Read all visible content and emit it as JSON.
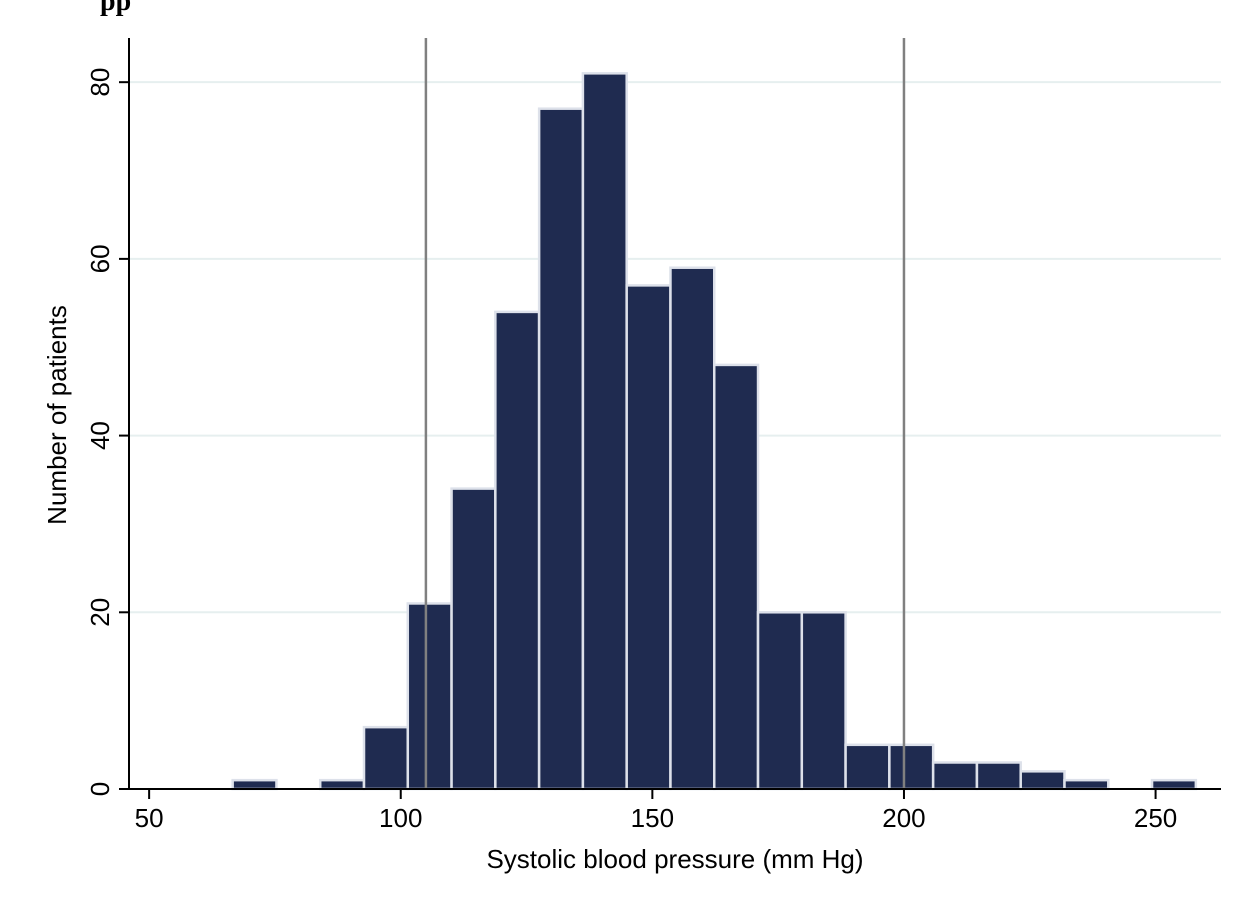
{
  "header_fragment": "pp",
  "colors": {
    "bar_fill": "#1f2b50",
    "bar_edge": "#dde1ea",
    "gridline": "#e6efef",
    "refline": "#808080",
    "axis": "#000000"
  },
  "chart_data": {
    "type": "bar",
    "title": "",
    "xlabel": "Systolic blood pressure (mm Hg)",
    "ylabel": "Number of patients",
    "xlim": [
      46,
      263
    ],
    "ylim": [
      0,
      85
    ],
    "xticks": [
      50,
      100,
      150,
      200,
      250
    ],
    "yticks": [
      0,
      20,
      40,
      60,
      80
    ],
    "grid": "horizontal",
    "bin_width": 8.7,
    "bins": [
      {
        "start": 66.6,
        "count": 1
      },
      {
        "start": 84.0,
        "count": 1
      },
      {
        "start": 92.7,
        "count": 7
      },
      {
        "start": 101.4,
        "count": 21
      },
      {
        "start": 110.1,
        "count": 34
      },
      {
        "start": 118.8,
        "count": 54
      },
      {
        "start": 127.5,
        "count": 77
      },
      {
        "start": 136.2,
        "count": 81
      },
      {
        "start": 144.9,
        "count": 57
      },
      {
        "start": 153.6,
        "count": 59
      },
      {
        "start": 162.3,
        "count": 48
      },
      {
        "start": 171.0,
        "count": 20
      },
      {
        "start": 179.7,
        "count": 20
      },
      {
        "start": 188.4,
        "count": 5
      },
      {
        "start": 197.1,
        "count": 5
      },
      {
        "start": 205.8,
        "count": 3
      },
      {
        "start": 214.5,
        "count": 3
      },
      {
        "start": 223.2,
        "count": 2
      },
      {
        "start": 231.9,
        "count": 1
      },
      {
        "start": 249.3,
        "count": 1
      }
    ],
    "reference_lines": [
      105,
      200
    ]
  }
}
